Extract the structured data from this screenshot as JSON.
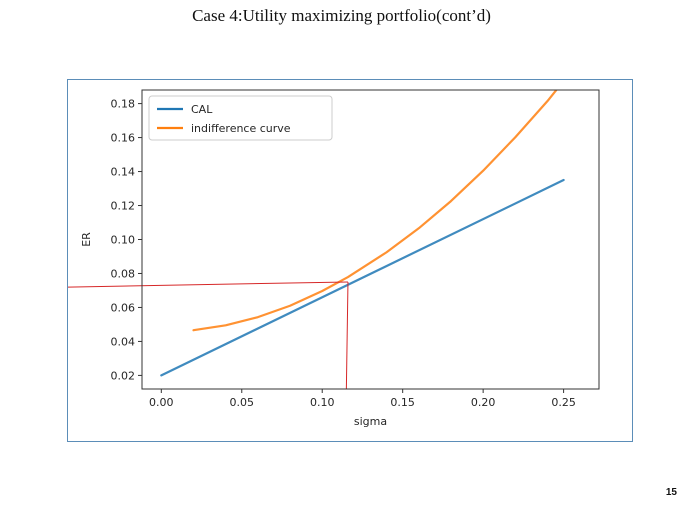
{
  "slide": {
    "title": "Case 4:Utility maximizing portfolio(cont’d)",
    "page_number": "15"
  },
  "chart_data": {
    "type": "line",
    "xlabel": "sigma",
    "ylabel": "ER",
    "xlim": [
      -0.012,
      0.272
    ],
    "ylim": [
      0.012,
      0.188
    ],
    "xticks": [
      0.0,
      0.05,
      0.1,
      0.15,
      0.2,
      0.25
    ],
    "xtick_labels": [
      "0.00",
      "0.05",
      "0.10",
      "0.15",
      "0.20",
      "0.25"
    ],
    "yticks": [
      0.02,
      0.04,
      0.06,
      0.08,
      0.1,
      0.12,
      0.14,
      0.16,
      0.18
    ],
    "ytick_labels": [
      "0.02",
      "0.04",
      "0.06",
      "0.08",
      "0.10",
      "0.12",
      "0.14",
      "0.16",
      "0.18"
    ],
    "grid": false,
    "legend_position": "top-left",
    "series": [
      {
        "name": "CAL",
        "color": "#1f77b4",
        "x": [
          0.0,
          0.25
        ],
        "y": [
          0.02,
          0.135
        ]
      },
      {
        "name": "indifference curve",
        "color": "#ff7f0e",
        "x": [
          0.02,
          0.04,
          0.06,
          0.08,
          0.1,
          0.116,
          0.14,
          0.16,
          0.18,
          0.2,
          0.22,
          0.24,
          0.26
        ],
        "y": [
          0.0466,
          0.0495,
          0.0543,
          0.061,
          0.0697,
          0.0779,
          0.0925,
          0.1066,
          0.1226,
          0.1405,
          0.1602,
          0.1815,
          0.2052
        ]
      }
    ],
    "reference_lines": {
      "color": "#d62728",
      "horizontal": {
        "y_start": 0.072,
        "y_end": 0.075,
        "x_end": 0.116
      },
      "vertical": {
        "x_top": 0.116,
        "y_top": 0.075,
        "x_bottom": 0.115,
        "y_bottom": 0.012
      }
    }
  }
}
